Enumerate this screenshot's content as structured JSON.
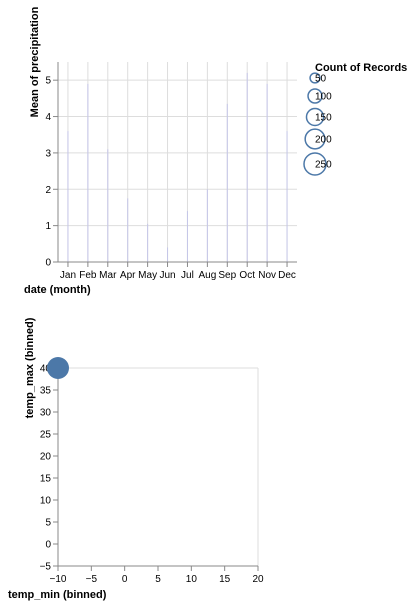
{
  "chart_data": [
    {
      "type": "bar",
      "mark_style": "tick",
      "categories": [
        "Jan",
        "Feb",
        "Mar",
        "Apr",
        "May",
        "Jun",
        "Jul",
        "Aug",
        "Sep",
        "Oct",
        "Nov",
        "Dec"
      ],
      "values": [
        3.6,
        4.9,
        3.1,
        1.75,
        1.05,
        0.4,
        1.4,
        2.0,
        4.35,
        5.2,
        4.9,
        3.6
      ],
      "xlabel": "date (month)",
      "ylabel": "Mean of precipitation",
      "ylim": [
        0,
        5.5
      ],
      "yticks": [
        0,
        1,
        2,
        3,
        4,
        5
      ],
      "grid": true,
      "mark_color": "#c5c6e8"
    },
    {
      "type": "scatter",
      "xlabel": "temp_min (binned)",
      "ylabel": "temp_max (binned)",
      "xlim": [
        -10,
        20
      ],
      "ylim": [
        -5,
        40
      ],
      "xticks": [
        -10,
        -5,
        0,
        5,
        10,
        15,
        20
      ],
      "yticks": [
        -5,
        0,
        5,
        10,
        15,
        20,
        25,
        30,
        35,
        40
      ],
      "points": [
        {
          "x": -10,
          "y": 40,
          "count": 250
        }
      ],
      "grid": false,
      "mark_color": "#4c78a8"
    }
  ],
  "legend": {
    "title": "Count of Records",
    "placement": "right",
    "entries": [
      {
        "label": "50",
        "value": 50
      },
      {
        "label": "100",
        "value": 100
      },
      {
        "label": "150",
        "value": 150
      },
      {
        "label": "200",
        "value": 200
      },
      {
        "label": "250",
        "value": 250
      }
    ],
    "stroke_color": "#4c78a8"
  }
}
